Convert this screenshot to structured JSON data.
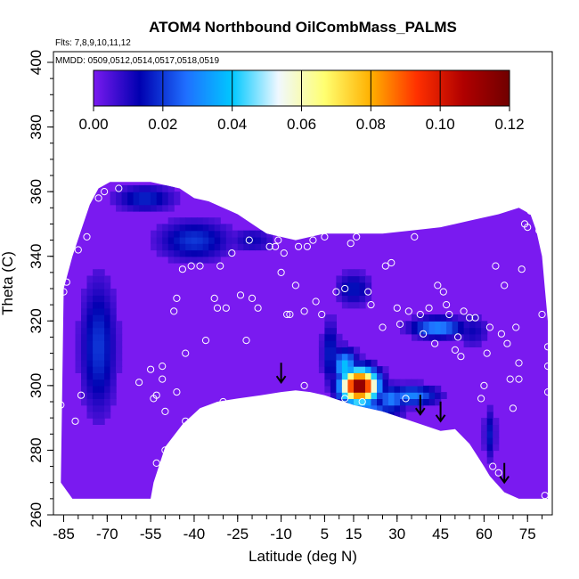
{
  "chart_data": {
    "type": "heatmap",
    "title": "ATOM4 Northbound OilCombMass_PALMS",
    "subtitle_flights": "Flts: 7,8,9,10,11,12",
    "subtitle_dates": "MMDD: 0509,0512,0514,0517,0518,0519",
    "xlabel": "Latitude (deg N)",
    "ylabel": "Theta (C)",
    "xlim": [
      -87,
      82
    ],
    "ylim": [
      260,
      400
    ],
    "x_ticks": [
      -85,
      -70,
      -55,
      -40,
      -25,
      -10,
      5,
      15,
      30,
      45,
      60,
      75
    ],
    "y_ticks": [
      260,
      280,
      300,
      320,
      340,
      360,
      380,
      400
    ],
    "colorbar": {
      "range": [
        0,
        0.12
      ],
      "ticks": [
        "0.00",
        "0.02",
        "0.04",
        "0.06",
        "0.08",
        "0.10",
        "0.12"
      ],
      "colors": [
        "#7a1af0",
        "#0000b0",
        "#1f6fff",
        "#00c8ff",
        "#f0f8ff",
        "#ffff70",
        "#ffb000",
        "#ff3000",
        "#b00000",
        "#700000"
      ]
    },
    "field_background_value": 0.004,
    "data_top": [
      [
        -86,
        270
      ],
      [
        -85,
        330
      ],
      [
        -82,
        340
      ],
      [
        -79,
        348
      ],
      [
        -76,
        356
      ],
      [
        -73,
        361
      ],
      [
        -69,
        363
      ],
      [
        -65,
        363
      ],
      [
        -55,
        363
      ],
      [
        -45,
        361
      ],
      [
        -40,
        358
      ],
      [
        -35,
        357
      ],
      [
        -25,
        353
      ],
      [
        -15,
        347
      ],
      [
        -5,
        345
      ],
      [
        5,
        347
      ],
      [
        15,
        347
      ],
      [
        25,
        347
      ],
      [
        35,
        348
      ],
      [
        45,
        349
      ],
      [
        55,
        351
      ],
      [
        65,
        353
      ],
      [
        72,
        355
      ],
      [
        76,
        353
      ],
      [
        78,
        348
      ],
      [
        80,
        340
      ],
      [
        81,
        330
      ],
      [
        82,
        320
      ]
    ],
    "data_bottom": [
      [
        -82,
        265
      ],
      [
        -55,
        265
      ],
      [
        -54,
        270
      ],
      [
        -50,
        281
      ],
      [
        -44,
        288
      ],
      [
        -38,
        293
      ],
      [
        -32,
        295
      ],
      [
        -25,
        296
      ],
      [
        -17,
        297
      ],
      [
        -10,
        298
      ],
      [
        -5,
        298.5
      ],
      [
        0,
        298
      ],
      [
        5,
        297
      ],
      [
        15,
        294
      ],
      [
        25,
        292
      ],
      [
        35,
        289
      ],
      [
        45,
        286
      ],
      [
        50,
        286.5
      ],
      [
        55,
        282
      ],
      [
        60,
        275
      ],
      [
        62,
        272
      ],
      [
        64,
        270
      ],
      [
        67,
        267
      ],
      [
        72,
        265
      ],
      [
        82,
        265
      ]
    ],
    "hotspots": [
      {
        "lat": -73,
        "theta": 312,
        "sx": 6,
        "sy": 20,
        "value": 0.02
      },
      {
        "lat": -40,
        "theta": 345,
        "sx": 12,
        "sy": 6,
        "value": 0.02
      },
      {
        "lat": -57,
        "theta": 358,
        "sx": 10,
        "sy": 4,
        "value": 0.018
      },
      {
        "lat": 7,
        "theta": 310,
        "sx": 3,
        "sy": 10,
        "value": 0.018
      },
      {
        "lat": 15,
        "theta": 330,
        "sx": 6,
        "sy": 5,
        "value": 0.016
      },
      {
        "lat": 17,
        "theta": 300,
        "sx": 6,
        "sy": 5,
        "value": 0.12
      },
      {
        "lat": 12,
        "theta": 306,
        "sx": 4,
        "sy": 5,
        "value": 0.04
      },
      {
        "lat": 17,
        "theta": 292,
        "sx": 12,
        "sy": 3,
        "value": 0.035
      },
      {
        "lat": 28,
        "theta": 296,
        "sx": 5,
        "sy": 4,
        "value": 0.03
      },
      {
        "lat": 35,
        "theta": 297,
        "sx": 9,
        "sy": 3,
        "value": 0.03
      },
      {
        "lat": 44,
        "theta": 318,
        "sx": 9,
        "sy": 3,
        "value": 0.032
      },
      {
        "lat": 56,
        "theta": 317,
        "sx": 6,
        "sy": 5,
        "value": 0.012
      },
      {
        "lat": 62,
        "theta": 285,
        "sx": 2,
        "sy": 8,
        "value": 0.016
      },
      {
        "lat": -20,
        "theta": 345,
        "sx": 8,
        "sy": 4,
        "value": 0.012
      }
    ],
    "sample_points": [
      [
        -86,
        294
      ],
      [
        -85,
        329
      ],
      [
        -84,
        332
      ],
      [
        -81,
        289
      ],
      [
        -79,
        297
      ],
      [
        -80,
        342
      ],
      [
        -77,
        346
      ],
      [
        -73,
        358
      ],
      [
        -71,
        360
      ],
      [
        -66,
        361
      ],
      [
        -59,
        301
      ],
      [
        -55,
        305
      ],
      [
        -54,
        296
      ],
      [
        -53,
        297
      ],
      [
        -53,
        276
      ],
      [
        -51,
        306
      ],
      [
        -51,
        302
      ],
      [
        -50,
        292
      ],
      [
        -50,
        280
      ],
      [
        -47,
        323
      ],
      [
        -46,
        327
      ],
      [
        -46,
        298
      ],
      [
        -44,
        336
      ],
      [
        -43,
        289
      ],
      [
        -43,
        310
      ],
      [
        -41,
        337
      ],
      [
        -38,
        337
      ],
      [
        -36,
        314
      ],
      [
        -33,
        327
      ],
      [
        -32,
        324
      ],
      [
        -31,
        337
      ],
      [
        -30,
        295
      ],
      [
        -29,
        324
      ],
      [
        -27,
        341
      ],
      [
        -24,
        328
      ],
      [
        -22,
        314
      ],
      [
        -21,
        345
      ],
      [
        -20,
        327
      ],
      [
        -18,
        324
      ],
      [
        -15,
        288
      ],
      [
        -14,
        343
      ],
      [
        -12,
        343
      ],
      [
        -11,
        345
      ],
      [
        -10,
        335
      ],
      [
        -9,
        341
      ],
      [
        -8,
        322
      ],
      [
        -7,
        322
      ],
      [
        -5,
        331
      ],
      [
        -4,
        343
      ],
      [
        -2,
        300
      ],
      [
        -2,
        323
      ],
      [
        -1,
        343
      ],
      [
        1,
        345
      ],
      [
        2,
        326
      ],
      [
        4,
        322
      ],
      [
        5,
        346
      ],
      [
        9,
        329
      ],
      [
        12,
        296
      ],
      [
        12,
        330
      ],
      [
        14,
        344
      ],
      [
        16,
        346
      ],
      [
        18,
        295
      ],
      [
        20,
        329
      ],
      [
        21,
        325
      ],
      [
        25,
        318
      ],
      [
        26,
        337
      ],
      [
        28,
        338
      ],
      [
        30,
        324
      ],
      [
        31,
        319
      ],
      [
        33,
        296
      ],
      [
        34,
        323
      ],
      [
        36,
        346
      ],
      [
        38,
        322
      ],
      [
        39,
        316
      ],
      [
        41,
        324
      ],
      [
        43,
        313
      ],
      [
        44,
        331
      ],
      [
        46,
        329
      ],
      [
        47,
        325
      ],
      [
        48,
        322
      ],
      [
        50,
        311
      ],
      [
        51,
        315
      ],
      [
        52,
        309
      ],
      [
        53,
        323
      ],
      [
        55,
        321
      ],
      [
        57,
        321
      ],
      [
        59,
        296
      ],
      [
        60,
        300
      ],
      [
        61,
        310
      ],
      [
        62,
        318
      ],
      [
        63,
        275
      ],
      [
        64,
        337
      ],
      [
        65,
        273
      ],
      [
        66,
        316
      ],
      [
        67,
        331
      ],
      [
        68,
        313
      ],
      [
        69,
        302
      ],
      [
        70,
        293
      ],
      [
        71,
        318
      ],
      [
        72,
        302
      ],
      [
        72,
        307
      ],
      [
        73,
        336
      ],
      [
        74,
        350
      ],
      [
        75,
        349
      ],
      [
        76,
        354
      ],
      [
        77,
        360
      ],
      [
        78,
        353
      ],
      [
        79,
        348
      ],
      [
        80,
        322
      ],
      [
        81,
        266
      ],
      [
        82,
        312
      ],
      [
        82,
        306
      ],
      [
        82,
        298
      ]
    ],
    "arrows": [
      -10,
      38,
      45,
      67
    ]
  }
}
